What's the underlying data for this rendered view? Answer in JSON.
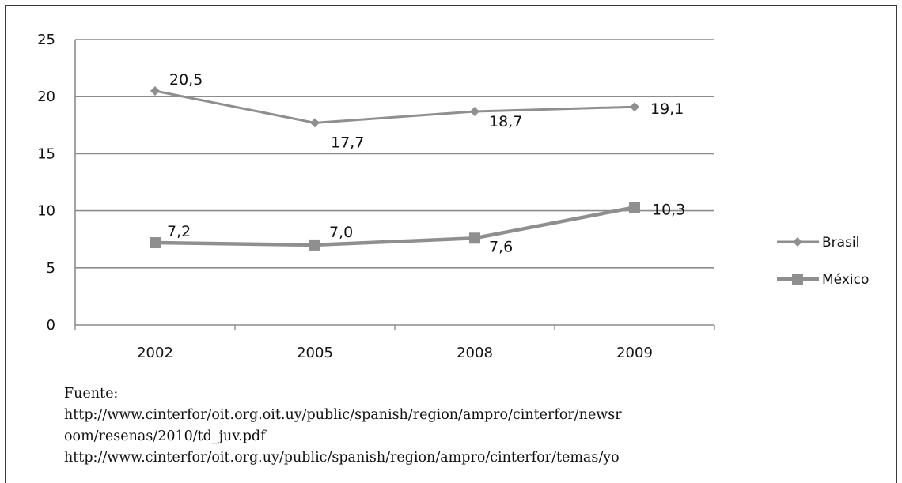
{
  "chart_data": {
    "type": "line",
    "title": "",
    "xlabel": "",
    "ylabel": "",
    "categories": [
      "2002",
      "2005",
      "2008",
      "2009"
    ],
    "ylim": [
      0,
      25
    ],
    "yticks": [
      "0",
      "5",
      "10",
      "15",
      "20",
      "25"
    ],
    "grid": true,
    "legend_position": "right",
    "series": [
      {
        "name": "Brasil",
        "marker": "diamond",
        "color": "#8f8f8f",
        "values": [
          20.5,
          17.7,
          18.7,
          19.1
        ],
        "labels": [
          "20,5",
          "17,7",
          "18,7",
          "19,1"
        ]
      },
      {
        "name": "México",
        "marker": "square",
        "color": "#8f8f8f",
        "values": [
          7.2,
          7.0,
          7.6,
          10.3
        ],
        "labels": [
          "7,2",
          "7,0",
          "7,6",
          "10,3"
        ]
      }
    ]
  },
  "source": {
    "heading": "Fuente:",
    "line1": "http://www.cinterfor/oit.org.oit.uy/public/spanish/region/ampro/cinterfor/newsr",
    "line2": "oom/resenas/2010/td_juv.pdf",
    "line3": "http://www.cinterfor/oit.org.uy/public/spanish/region/ampro/cinterfor/temas/yo"
  }
}
